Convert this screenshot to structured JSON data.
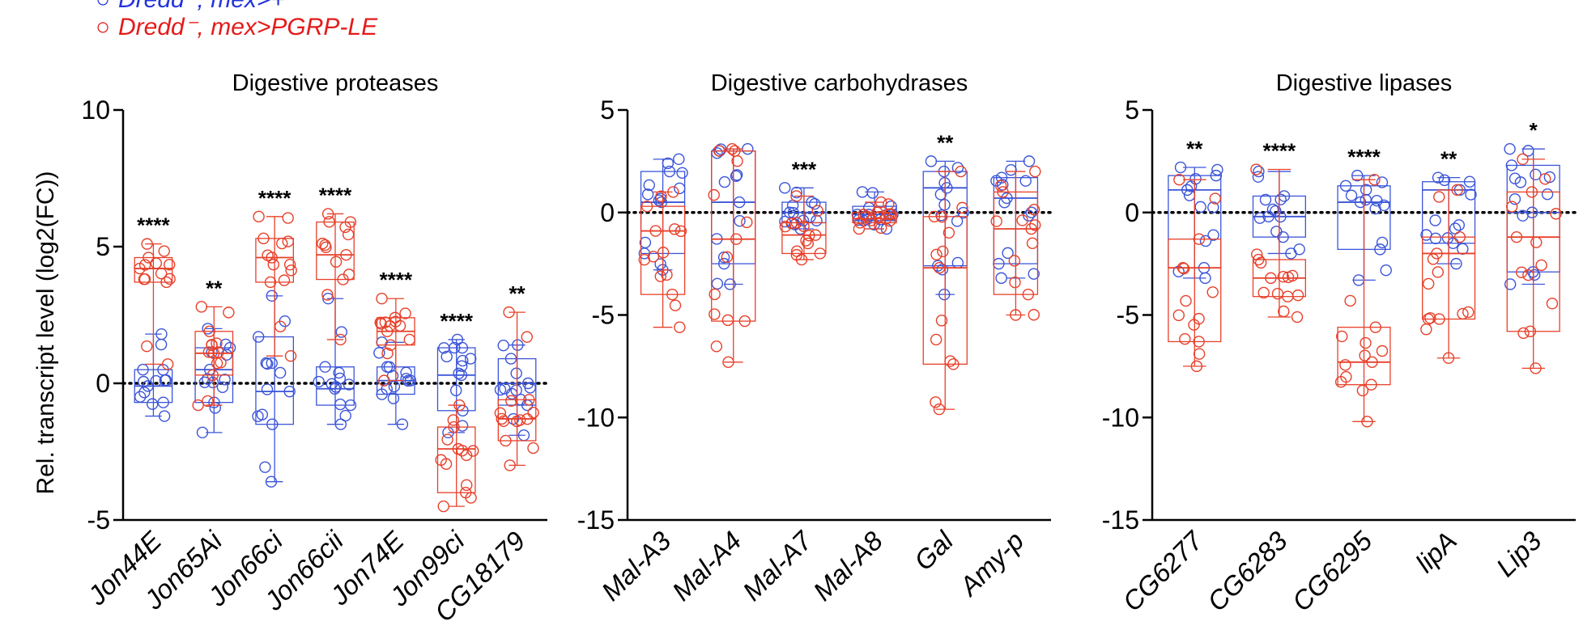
{
  "legend": [
    {
      "label": "Dredd⁻; mex>+",
      "color": "#2233dd",
      "marker": "○"
    },
    {
      "label": "Dredd⁻, mex>PGRP-LE",
      "color": "#e41a1a",
      "marker": "○"
    }
  ],
  "colors": {
    "blue": "#3b55d9",
    "red": "#e8402a"
  },
  "chart_data": [
    {
      "type": "box",
      "title": "Digestive proteases",
      "ylabel": "Rel. transcript level (log2(FC))",
      "ylim": [
        -5,
        10
      ],
      "yticks": [
        10,
        5,
        0,
        -5
      ],
      "categories": [
        "Jon44E",
        "Jon65Ai",
        "Jon66ci",
        "Jon66cii",
        "Jon74E",
        "Jon99ci",
        "CG18179"
      ],
      "significance": [
        "****",
        "**",
        "****",
        "****",
        "****",
        "****",
        "**"
      ],
      "series": [
        {
          "name": "Dredd⁻; mex>+",
          "color": "blue",
          "boxes": [
            {
              "min": -1.2,
              "q1": -0.7,
              "median": -0.1,
              "q3": 0.5,
              "max": 1.8
            },
            {
              "min": -1.8,
              "q1": -0.7,
              "median": 0.5,
              "q3": 1.3,
              "max": 2.0
            },
            {
              "min": -3.6,
              "q1": -1.5,
              "median": -0.3,
              "q3": 1.7,
              "max": 3.2
            },
            {
              "min": -1.5,
              "q1": -0.8,
              "median": -0.2,
              "q3": 0.6,
              "max": 3.1
            },
            {
              "min": -1.5,
              "q1": -0.4,
              "median": 0.1,
              "q3": 0.6,
              "max": 1.5
            },
            {
              "min": -1.8,
              "q1": -1.0,
              "median": 0.3,
              "q3": 1.3,
              "max": 1.6
            },
            {
              "min": -1.9,
              "q1": -0.8,
              "median": 0.0,
              "q3": 0.9,
              "max": 1.4
            }
          ]
        },
        {
          "name": "Dredd⁻, mex>PGRP-LE",
          "color": "red",
          "boxes": [
            {
              "min": 0.7,
              "q1": 3.7,
              "median": 4.2,
              "q3": 4.6,
              "max": 5.1
            },
            {
              "min": -0.8,
              "q1": 0.3,
              "median": 1.1,
              "q3": 1.9,
              "max": 2.8
            },
            {
              "min": 1.0,
              "q1": 3.7,
              "median": 4.6,
              "q3": 5.3,
              "max": 6.1
            },
            {
              "min": 1.6,
              "q1": 3.8,
              "median": 4.7,
              "q3": 5.9,
              "max": 6.2
            },
            {
              "min": 0.1,
              "q1": 1.4,
              "median": 1.9,
              "q3": 2.4,
              "max": 3.1
            },
            {
              "min": -4.5,
              "q1": -4.0,
              "median": -2.4,
              "q3": -1.6,
              "max": -0.8
            },
            {
              "min": -3.0,
              "q1": -2.1,
              "median": -1.3,
              "q3": -0.6,
              "max": 2.6
            }
          ]
        }
      ]
    },
    {
      "type": "box",
      "title": "Digestive carbohydrases",
      "ylabel": "",
      "ylim": [
        -15,
        5
      ],
      "yticks": [
        5,
        0,
        -5,
        -10,
        -15
      ],
      "categories": [
        "Mal-A3",
        "Mal-A4",
        "Mal-A7",
        "Mal-A8",
        "Gal",
        "Amy-p"
      ],
      "significance": [
        "",
        "",
        "***",
        "",
        "**",
        ""
      ],
      "series": [
        {
          "name": "Dredd⁻; mex>+",
          "color": "blue",
          "boxes": [
            {
              "min": -2.8,
              "q1": -2.0,
              "median": 0.5,
              "q3": 2.0,
              "max": 2.6
            },
            {
              "min": -3.5,
              "q1": -2.5,
              "median": 0.5,
              "q3": 3.0,
              "max": 3.1
            },
            {
              "min": -0.8,
              "q1": -0.5,
              "median": 0.0,
              "q3": 0.5,
              "max": 1.2
            },
            {
              "min": -0.8,
              "q1": -0.4,
              "median": -0.1,
              "q3": 0.3,
              "max": 1.0
            },
            {
              "min": -4.0,
              "q1": -2.6,
              "median": 1.2,
              "q3": 2.0,
              "max": 2.5
            },
            {
              "min": -3.2,
              "q1": -2.5,
              "median": 0.7,
              "q3": 1.7,
              "max": 2.5
            }
          ]
        },
        {
          "name": "Dredd⁻, mex>PGRP-LE",
          "color": "red",
          "boxes": [
            {
              "min": -5.6,
              "q1": -4.0,
              "median": -0.9,
              "q3": 0.3,
              "max": 1.0
            },
            {
              "min": -7.3,
              "q1": -5.3,
              "median": -1.3,
              "q3": 3.0,
              "max": 3.1
            },
            {
              "min": -2.3,
              "q1": -2.0,
              "median": -1.1,
              "q3": -0.5,
              "max": 0.8
            },
            {
              "min": -0.8,
              "q1": -0.5,
              "median": -0.3,
              "q3": 0.0,
              "max": 0.5
            },
            {
              "min": -9.6,
              "q1": -7.4,
              "median": -2.7,
              "q3": -0.2,
              "max": 2.0
            },
            {
              "min": -5.0,
              "q1": -4.0,
              "median": -0.8,
              "q3": 1.0,
              "max": 2.0
            }
          ]
        }
      ]
    },
    {
      "type": "box",
      "title": "Digestive lipases",
      "ylabel": "",
      "ylim": [
        -15,
        5
      ],
      "yticks": [
        5,
        0,
        -5,
        -10,
        -15
      ],
      "categories": [
        "CG6277",
        "CG6283",
        "CG6295",
        "lipA",
        "Lip3"
      ],
      "significance": [
        "**",
        "****",
        "****",
        "**",
        "*"
      ],
      "series": [
        {
          "name": "Dredd⁻; mex>+",
          "color": "blue",
          "boxes": [
            {
              "min": -3.2,
              "q1": -2.7,
              "median": 1.1,
              "q3": 1.8,
              "max": 2.2
            },
            {
              "min": -2.0,
              "q1": -1.2,
              "median": -0.2,
              "q3": 0.8,
              "max": 2.0
            },
            {
              "min": -3.3,
              "q1": -1.8,
              "median": 0.5,
              "q3": 1.3,
              "max": 1.8
            },
            {
              "min": -2.5,
              "q1": -1.5,
              "median": 1.1,
              "q3": 1.5,
              "max": 1.7
            },
            {
              "min": -3.5,
              "q1": -2.9,
              "median": 0.0,
              "q3": 2.3,
              "max": 3.1
            }
          ]
        },
        {
          "name": "Dredd⁻, mex>PGRP-LE",
          "color": "red",
          "boxes": [
            {
              "min": -7.5,
              "q1": -6.3,
              "median": -2.7,
              "q3": -1.3,
              "max": 1.6
            },
            {
              "min": -5.1,
              "q1": -4.1,
              "median": -3.2,
              "q3": -2.3,
              "max": 2.1
            },
            {
              "min": -10.2,
              "q1": -8.4,
              "median": -7.3,
              "q3": -5.6,
              "max": 1.6
            },
            {
              "min": -7.1,
              "q1": -5.2,
              "median": -2.0,
              "q3": -1.2,
              "max": 1.1
            },
            {
              "min": -7.6,
              "q1": -5.8,
              "median": -1.2,
              "q3": 1.0,
              "max": 2.6
            }
          ]
        }
      ]
    }
  ]
}
